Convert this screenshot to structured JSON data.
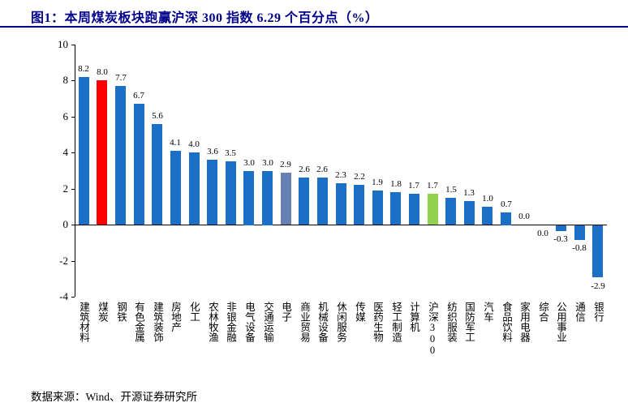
{
  "figure": {
    "title": "图1：本周煤炭板块跑赢沪深 300 指数 6.29 个百分点（%）"
  },
  "footer": {
    "source": "数据来源：Wind、开源证券研究所"
  },
  "colors": {
    "bar_blue": "#1B6FC4",
    "bar_red": "#FF0000",
    "bar_slate": "#6680B2",
    "bar_green": "#92D050",
    "title_navy": "#00008B",
    "axis_black": "#000000"
  },
  "chart_data": {
    "type": "bar",
    "title": "图1：本周煤炭板块跑赢沪深 300 指数 6.29 个百分点（%）",
    "xlabel": "",
    "ylabel": "",
    "ylim": [
      -4,
      10
    ],
    "yticks": [
      10,
      8,
      6,
      4,
      2,
      0,
      -2,
      -4
    ],
    "grid": false,
    "legend": "none",
    "categories": [
      "建筑材料",
      "煤炭",
      "钢铁",
      "有色金属",
      "建筑装饰",
      "房地产",
      "化工",
      "农林牧渔",
      "非银金融",
      "电气设备",
      "交通运输",
      "电子",
      "商业贸易",
      "机械设备",
      "休闲服务",
      "传媒",
      "医药生物",
      "轻工制造",
      "计算机",
      "沪深300",
      "纺织服装",
      "国防军工",
      "汽车",
      "食品饮料",
      "家用电器",
      "综合",
      "公用事业",
      "通信",
      "银行"
    ],
    "values": [
      8.2,
      8.0,
      7.7,
      6.7,
      5.6,
      4.1,
      4.0,
      3.6,
      3.5,
      3.0,
      3.0,
      2.9,
      2.6,
      2.6,
      2.3,
      2.2,
      1.9,
      1.8,
      1.7,
      1.7,
      1.5,
      1.3,
      1.0,
      0.7,
      0.0,
      0.0,
      -0.3,
      -0.8,
      -2.9
    ],
    "highlight": {
      "煤炭": "red",
      "电子": "slate",
      "沪深300": "green"
    },
    "zero_labels_below": [
      "综合"
    ],
    "source_note": "数据来源：Wind、开源证券研究所"
  }
}
